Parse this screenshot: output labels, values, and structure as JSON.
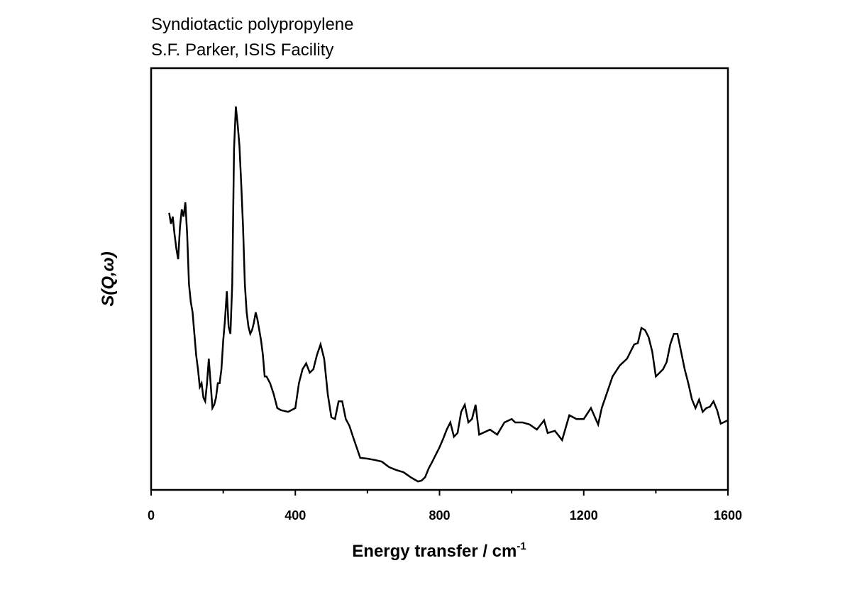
{
  "chart_data": {
    "type": "line",
    "title": "Syndiotactic polypropylene",
    "subtitle": "S.F. Parker, ISIS Facility",
    "xlabel": "Energy transfer / cm",
    "xlabel_sup": "-1",
    "ylabel": "S(Q,ω)",
    "xlim": [
      0,
      1600
    ],
    "xticks": [
      0,
      400,
      800,
      1200,
      1600
    ],
    "xminorticks": [
      200,
      600,
      1000,
      1400
    ],
    "ylim": [
      0,
      100
    ],
    "series": [
      {
        "color": "#000000",
        "x": [
          50,
          55,
          60,
          65,
          70,
          75,
          80,
          85,
          90,
          95,
          100,
          105,
          110,
          115,
          120,
          125,
          130,
          135,
          140,
          145,
          150,
          155,
          160,
          165,
          170,
          175,
          180,
          185,
          190,
          195,
          200,
          205,
          210,
          215,
          220,
          225,
          230,
          235,
          240,
          245,
          250,
          255,
          260,
          265,
          270,
          275,
          280,
          285,
          290,
          295,
          300,
          305,
          310,
          315,
          320,
          330,
          340,
          350,
          360,
          380,
          400,
          410,
          420,
          430,
          440,
          450,
          460,
          470,
          480,
          490,
          500,
          510,
          520,
          530,
          540,
          550,
          560,
          570,
          580,
          600,
          620,
          640,
          660,
          680,
          700,
          720,
          740,
          750,
          760,
          770,
          780,
          790,
          800,
          810,
          820,
          830,
          840,
          850,
          860,
          870,
          880,
          890,
          900,
          910,
          920,
          940,
          960,
          980,
          1000,
          1010,
          1030,
          1050,
          1070,
          1090,
          1100,
          1120,
          1140,
          1160,
          1180,
          1200,
          1220,
          1240,
          1250,
          1260,
          1280,
          1300,
          1320,
          1340,
          1350,
          1360,
          1370,
          1380,
          1390,
          1400,
          1420,
          1430,
          1440,
          1450,
          1460,
          1470,
          1480,
          1490,
          1500,
          1510,
          1520,
          1530,
          1540,
          1550,
          1560,
          1570,
          1580,
          1600
        ],
        "values": [
          65.7,
          63.1,
          64.8,
          60.6,
          57.2,
          54.7,
          62.3,
          66.5,
          64.8,
          68.2,
          60.6,
          48.8,
          44.6,
          42.1,
          37.0,
          31.9,
          28.6,
          24.4,
          25.3,
          21.9,
          21.0,
          25.3,
          31.1,
          25.3,
          19.4,
          20.2,
          21.9,
          25.3,
          25.3,
          28.6,
          35.4,
          40.4,
          47.1,
          38.7,
          37.0,
          48.8,
          80.8,
          90.9,
          86.7,
          81.6,
          72.4,
          62.3,
          48.8,
          42.1,
          38.7,
          37.0,
          37.9,
          39.6,
          42.1,
          40.4,
          37.9,
          35.4,
          32.0,
          26.9,
          26.9,
          25.3,
          22.7,
          19.4,
          18.9,
          18.5,
          19.4,
          25.3,
          28.6,
          30.0,
          27.8,
          28.6,
          32.0,
          34.5,
          31.1,
          22.7,
          17.2,
          16.8,
          21.0,
          21.0,
          16.8,
          15.2,
          12.6,
          10.1,
          7.6,
          7.4,
          7.1,
          6.7,
          5.4,
          4.7,
          4.2,
          3.0,
          2.0,
          2.2,
          3.0,
          5.1,
          6.7,
          8.4,
          10.1,
          12.1,
          14.3,
          16.0,
          12.6,
          13.5,
          18.5,
          20.2,
          16.0,
          16.8,
          20.2,
          13.1,
          13.5,
          14.3,
          13.1,
          16.0,
          16.8,
          16.0,
          16.0,
          15.5,
          14.3,
          16.5,
          13.5,
          14.0,
          11.8,
          17.7,
          16.8,
          16.8,
          19.4,
          15.5,
          19.4,
          21.9,
          26.9,
          29.5,
          31.1,
          34.5,
          34.8,
          38.4,
          37.9,
          36.2,
          32.8,
          26.9,
          28.6,
          30.3,
          34.5,
          37.0,
          37.0,
          32.8,
          28.6,
          25.3,
          21.5,
          19.4,
          21.4,
          18.5,
          19.4,
          19.7,
          21.0,
          18.9,
          15.7,
          16.5
        ]
      }
    ]
  }
}
